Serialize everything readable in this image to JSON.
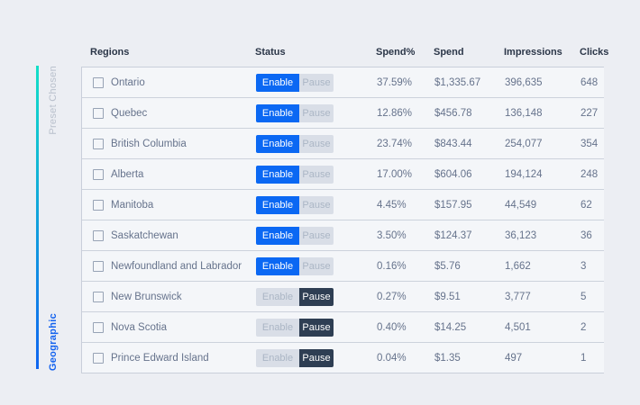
{
  "page": {
    "background_color": "#eceef3"
  },
  "sidebar": {
    "preset_label": "Preset Chosen",
    "group_label": "Geographic",
    "line_gradient_top_color": "#13dfc7",
    "line_gradient_bottom_color": "#0f65f0",
    "preset_label_color": "#b9c0cc",
    "group_label_color": "#1463ef"
  },
  "table": {
    "columns": [
      "Regions",
      "Status",
      "Spend%",
      "Spend",
      "Impressions",
      "Clicks"
    ],
    "status_buttons": {
      "enable": "Enable",
      "pause": "Pause"
    },
    "colors": {
      "enable_active_bg": "#0b68f3",
      "pause_active_bg": "#2e3e53",
      "inactive_bg": "#d9dee7",
      "header_text": "#2b3648",
      "cell_text": "#66738c",
      "row_border": "#ccd2dc"
    },
    "rows": [
      {
        "region": "Ontario",
        "status": "enabled",
        "spend_pct": "37.59%",
        "spend": "$1,335.67",
        "impressions": "396,635",
        "clicks": "648"
      },
      {
        "region": "Quebec",
        "status": "enabled",
        "spend_pct": "12.86%",
        "spend": "$456.78",
        "impressions": "136,148",
        "clicks": "227"
      },
      {
        "region": "British Columbia",
        "status": "enabled",
        "spend_pct": "23.74%",
        "spend": "$843.44",
        "impressions": "254,077",
        "clicks": "354"
      },
      {
        "region": "Alberta",
        "status": "enabled",
        "spend_pct": "17.00%",
        "spend": "$604.06",
        "impressions": "194,124",
        "clicks": "248"
      },
      {
        "region": "Manitoba",
        "status": "enabled",
        "spend_pct": "4.45%",
        "spend": "$157.95",
        "impressions": "44,549",
        "clicks": "62"
      },
      {
        "region": "Saskatchewan",
        "status": "enabled",
        "spend_pct": "3.50%",
        "spend": "$124.37",
        "impressions": "36,123",
        "clicks": "36"
      },
      {
        "region": "Newfoundland and Labrador",
        "status": "enabled",
        "spend_pct": "0.16%",
        "spend": "$5.76",
        "impressions": "1,662",
        "clicks": "3"
      },
      {
        "region": "New Brunswick",
        "status": "paused",
        "spend_pct": "0.27%",
        "spend": "$9.51",
        "impressions": "3,777",
        "clicks": "5"
      },
      {
        "region": "Nova Scotia",
        "status": "paused",
        "spend_pct": "0.40%",
        "spend": "$14.25",
        "impressions": "4,501",
        "clicks": "2"
      },
      {
        "region": "Prince Edward Island",
        "status": "paused",
        "spend_pct": "0.04%",
        "spend": "$1.35",
        "impressions": "497",
        "clicks": "1"
      }
    ]
  }
}
